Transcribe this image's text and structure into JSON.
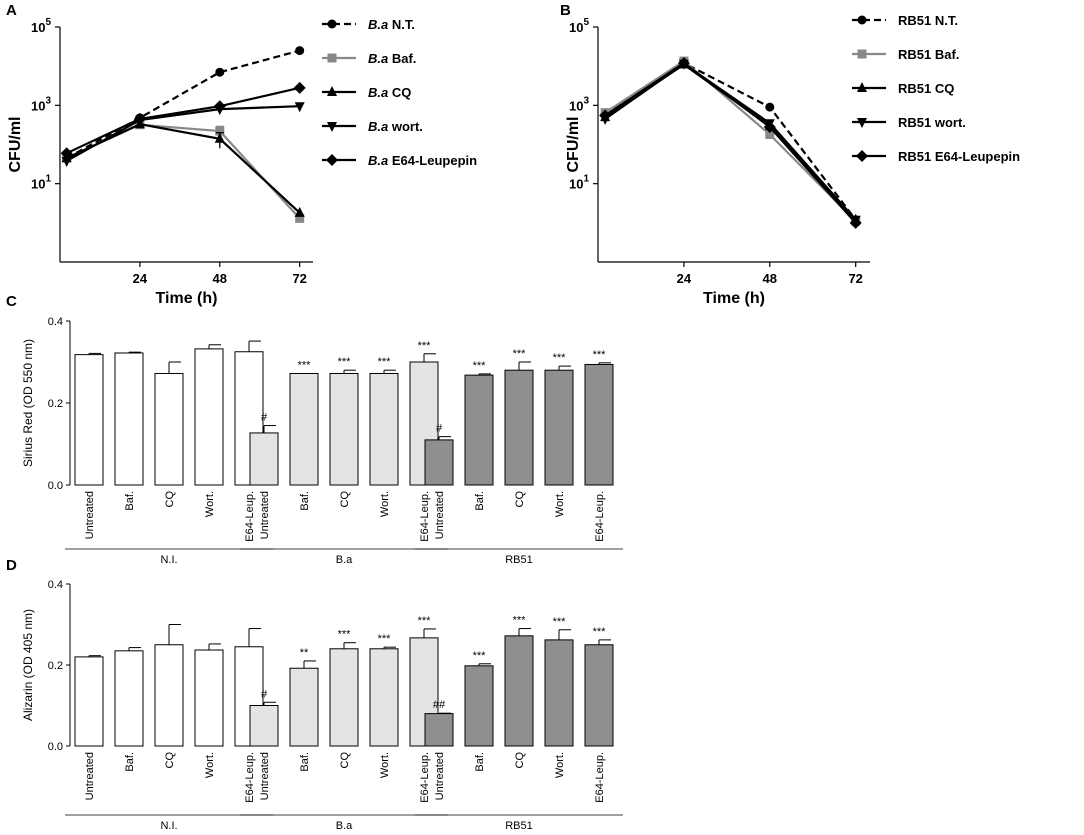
{
  "chart_data": [
    {
      "panel": "A",
      "type": "line",
      "ylabel": "CFU/ml",
      "xlabel": "Time (h)",
      "yscale": "log",
      "ylim": [
        0.1,
        100000
      ],
      "xlim": [
        0,
        76
      ],
      "x_ticks": [
        "24",
        "48",
        "72"
      ],
      "y_ticks": [
        {
          "base": "10",
          "exp": "1",
          "value": 10
        },
        {
          "base": "10",
          "exp": "3",
          "value": 1000
        },
        {
          "base": "10",
          "exp": "5",
          "value": 100000
        }
      ],
      "x": [
        2,
        24,
        48,
        72
      ],
      "series": [
        {
          "name_prefix": "B.a",
          "name": "N.T.",
          "marker": "circle",
          "dash": true,
          "color": "#000000",
          "values": [
            45,
            480,
            7000,
            25000
          ],
          "errors": [
            0,
            0,
            0,
            0
          ]
        },
        {
          "name_prefix": "B.a",
          "name": "Baf.",
          "marker": "square",
          "dash": false,
          "color": "#888888",
          "values": [
            45,
            320,
            220,
            1.3
          ],
          "errors": [
            0,
            0,
            70,
            0
          ]
        },
        {
          "name_prefix": "B.a",
          "name": "CQ",
          "marker": "triangle-up",
          "dash": false,
          "color": "#000000",
          "values": [
            45,
            330,
            140,
            1.8
          ],
          "errors": [
            0,
            0,
            60,
            0
          ]
        },
        {
          "name_prefix": "B.a",
          "name": "wort.",
          "marker": "triangle-down",
          "dash": false,
          "color": "#000000",
          "values": [
            38,
            420,
            800,
            950
          ],
          "errors": [
            0,
            0,
            0,
            0
          ]
        },
        {
          "name_prefix": "B.a",
          "name": "E64-Leupepin",
          "marker": "diamond",
          "dash": false,
          "color": "#000000",
          "values": [
            60,
            450,
            950,
            2800
          ],
          "errors": [
            0,
            0,
            0,
            0
          ]
        }
      ]
    },
    {
      "panel": "B",
      "type": "line",
      "ylabel": "CFU/ml",
      "xlabel": "Time (h)",
      "yscale": "log",
      "ylim": [
        0.1,
        100000
      ],
      "xlim": [
        0,
        76
      ],
      "x_ticks": [
        "24",
        "48",
        "72"
      ],
      "y_ticks": [
        {
          "base": "10",
          "exp": "1",
          "value": 10
        },
        {
          "base": "10",
          "exp": "3",
          "value": 1000
        },
        {
          "base": "10",
          "exp": "5",
          "value": 100000
        }
      ],
      "x": [
        2,
        24,
        48,
        72
      ],
      "series": [
        {
          "name_prefix": "RB51",
          "name": "N.T.",
          "marker": "circle",
          "dash": true,
          "color": "#000000",
          "values": [
            600,
            12000,
            900,
            1.2
          ],
          "errors": [
            0,
            0,
            0,
            0
          ]
        },
        {
          "name_prefix": "RB51",
          "name": "Baf.",
          "marker": "square",
          "dash": false,
          "color": "#888888",
          "values": [
            650,
            13500,
            180,
            1.1
          ],
          "errors": [
            0,
            1500,
            0,
            0
          ]
        },
        {
          "name_prefix": "RB51",
          "name": "CQ",
          "marker": "triangle-up",
          "dash": false,
          "color": "#000000",
          "values": [
            500,
            11000,
            300,
            1.2
          ],
          "errors": [
            0,
            0,
            0,
            0
          ]
        },
        {
          "name_prefix": "RB51",
          "name": "wort.",
          "marker": "triangle-down",
          "dash": false,
          "color": "#000000",
          "values": [
            450,
            11500,
            350,
            1.2
          ],
          "errors": [
            0,
            0,
            0,
            0
          ]
        },
        {
          "name_prefix": "RB51",
          "name": "E64-Leupepin",
          "marker": "diamond",
          "dash": false,
          "color": "#000000",
          "values": [
            550,
            12000,
            280,
            1.0
          ],
          "errors": [
            0,
            0,
            0,
            0
          ]
        }
      ]
    },
    {
      "panel": "C",
      "type": "bar",
      "ylabel": "Sirius Red (OD 550 nm)",
      "ylim": [
        0,
        0.4
      ],
      "y_ticks": [
        "0.0",
        "0.2",
        "0.4"
      ],
      "categories": [
        "Untreated",
        "Baf.",
        "CQ",
        "Wort.",
        "E64-Leup.",
        "Untreated",
        "Baf.",
        "CQ",
        "Wort.",
        "E64-Leup.",
        "Untreated",
        "Baf.",
        "CQ",
        "Wort.",
        "E64-Leup."
      ],
      "values": [
        0.318,
        0.322,
        0.272,
        0.332,
        0.325,
        0.127,
        0.272,
        0.272,
        0.272,
        0.3,
        0.11,
        0.268,
        0.28,
        0.28,
        0.294
      ],
      "errors": [
        0.003,
        0.002,
        0.028,
        0.01,
        0.026,
        0.018,
        0,
        0.008,
        0.008,
        0.02,
        0.008,
        0.003,
        0.02,
        0.01,
        0.004
      ],
      "significance": [
        "",
        "",
        "",
        "",
        "",
        "#",
        "***",
        "***",
        "***",
        "***",
        "#",
        "***",
        "***",
        "***",
        "***"
      ],
      "groups": [
        {
          "name": "N.I.",
          "fill": "#ffffff",
          "bars": 5
        },
        {
          "name": "B.a",
          "fill": "#e4e4e4",
          "bars": 5
        },
        {
          "name": "RB51",
          "fill": "#8f8f8f",
          "bars": 5
        }
      ]
    },
    {
      "panel": "D",
      "type": "bar",
      "ylabel": "Alizarin (OD 405 nm)",
      "ylim": [
        0,
        0.4
      ],
      "y_ticks": [
        "0.0",
        "0.2",
        "0.4"
      ],
      "categories": [
        "Untreated",
        "Baf.",
        "CQ",
        "Wort.",
        "E64-Leup.",
        "Untreated",
        "Baf.",
        "CQ",
        "Wort.",
        "E64-Leup.",
        "Untreated",
        "Baf.",
        "CQ",
        "Wort.",
        "E64-Leup."
      ],
      "values": [
        0.22,
        0.235,
        0.25,
        0.237,
        0.245,
        0.1,
        0.192,
        0.24,
        0.24,
        0.267,
        0.08,
        0.198,
        0.272,
        0.262,
        0.25
      ],
      "errors": [
        0.003,
        0.008,
        0.05,
        0.015,
        0.045,
        0.008,
        0.018,
        0.015,
        0.004,
        0.022,
        0.001,
        0.005,
        0.018,
        0.025,
        0.012
      ],
      "significance": [
        "",
        "",
        "",
        "",
        "",
        "#",
        "**",
        "***",
        "***",
        "***",
        "##",
        "***",
        "***",
        "***",
        "***"
      ],
      "groups": [
        {
          "name": "N.I.",
          "fill": "#ffffff",
          "bars": 5
        },
        {
          "name": "B.a",
          "fill": "#e4e4e4",
          "bars": 5
        },
        {
          "name": "RB51",
          "fill": "#8f8f8f",
          "bars": 5
        }
      ]
    }
  ]
}
